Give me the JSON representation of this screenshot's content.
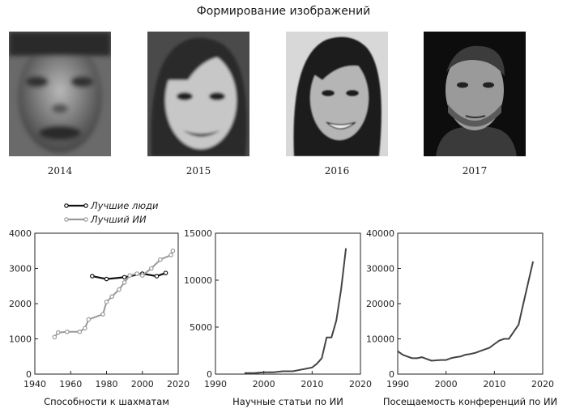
{
  "top_title": "Формирование изображений",
  "faces": [
    {
      "year": "2014",
      "kind": "blurry-grayscale-face"
    },
    {
      "year": "2015",
      "kind": "smiling-woman-grayscale-face"
    },
    {
      "year": "2016",
      "kind": "smiling-woman-photoreal-face"
    },
    {
      "year": "2017",
      "kind": "bearded-man-photoreal-face"
    }
  ],
  "chart_data": [
    {
      "type": "line",
      "xlabel": "Способности к шахматам",
      "ylabel": "",
      "xlim": [
        1940,
        2020
      ],
      "ylim": [
        0,
        4000
      ],
      "x_ticks": [
        "1940",
        "1960",
        "1980",
        "2000",
        "2020"
      ],
      "y_ticks": [
        "0",
        "1000",
        "2000",
        "3000",
        "4000"
      ],
      "legend_position": "top-left",
      "grid": false,
      "series": [
        {
          "name": "Лучшие люди",
          "color": "#111111",
          "x": [
            1972,
            1980,
            1990,
            2000,
            2008,
            2013
          ],
          "y": [
            2780,
            2700,
            2750,
            2850,
            2780,
            2870
          ]
        },
        {
          "name": "Лучший ИИ",
          "color": "#999999",
          "x": [
            1951,
            1953,
            1958,
            1965,
            1968,
            1970,
            1978,
            1980,
            1983,
            1987,
            1990,
            1993,
            1997,
            2000,
            2005,
            2010,
            2016,
            2017
          ],
          "y": [
            1050,
            1180,
            1200,
            1200,
            1300,
            1550,
            1700,
            2050,
            2200,
            2400,
            2600,
            2800,
            2850,
            2800,
            3000,
            3250,
            3380,
            3500
          ]
        }
      ]
    },
    {
      "type": "line",
      "xlabel": "Научные статьи по ИИ",
      "ylabel": "",
      "xlim": [
        1990,
        2020
      ],
      "ylim": [
        0,
        15000
      ],
      "x_ticks": [
        "1990",
        "2000",
        "2010",
        "2020"
      ],
      "y_ticks": [
        "0",
        "5000",
        "10000",
        "15000"
      ],
      "grid": false,
      "series": [
        {
          "color": "#444444",
          "x": [
            1996,
            1998,
            2000,
            2002,
            2004,
            2006,
            2008,
            2010,
            2011,
            2012,
            2013,
            2014,
            2015,
            2016,
            2017
          ],
          "y": [
            100,
            100,
            200,
            200,
            300,
            300,
            500,
            700,
            1100,
            1700,
            3900,
            3900,
            5700,
            9000,
            13400
          ]
        }
      ]
    },
    {
      "type": "line",
      "xlabel": "Посещаемость конференций по ИИ",
      "ylabel": "",
      "xlim": [
        1990,
        2020
      ],
      "ylim": [
        0,
        40000
      ],
      "x_ticks": [
        "1990",
        "2000",
        "2010",
        "2020"
      ],
      "y_ticks": [
        "0",
        "10000",
        "20000",
        "30000",
        "40000"
      ],
      "grid": false,
      "series": [
        {
          "color": "#444444",
          "x": [
            1990,
            1991,
            1992,
            1993,
            1994,
            1995,
            1996,
            1997,
            1998,
            1999,
            2000,
            2001,
            2002,
            2003,
            2004,
            2005,
            2006,
            2007,
            2008,
            2009,
            2010,
            2011,
            2012,
            2013,
            2014,
            2015,
            2016,
            2017,
            2018
          ],
          "y": [
            6500,
            5500,
            5000,
            4500,
            4500,
            4800,
            4300,
            3800,
            3900,
            4000,
            4000,
            4500,
            4800,
            5000,
            5500,
            5700,
            6000,
            6500,
            7000,
            7500,
            8500,
            9500,
            10000,
            10000,
            12000,
            14000,
            20000,
            26000,
            32000
          ]
        }
      ]
    }
  ]
}
